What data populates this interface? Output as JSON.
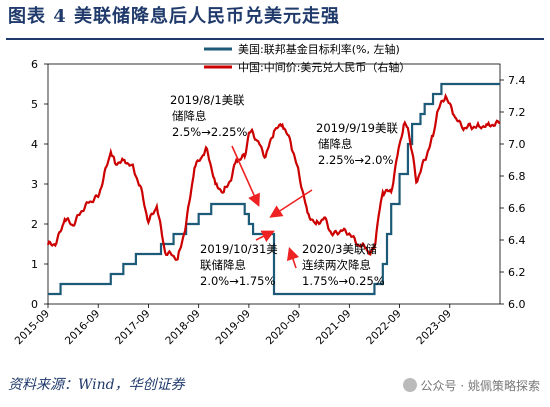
{
  "header": {
    "title": "图表 4   美联储降息后人民币兑美元走强"
  },
  "footer": {
    "source": "资料来源：Wind，华创证券",
    "watermark": "公众号 · 姚佩策略探索"
  },
  "chart_data": {
    "type": "line",
    "title": "",
    "legend": {
      "placement": "top-right",
      "entries": [
        "美国:联邦基金目标利率(%, 左轴)",
        "中国:中间价:美元兑人民币（右轴）"
      ]
    },
    "x_tick_labels": [
      "2015-09",
      "2016-09",
      "2017-09",
      "2018-09",
      "2019-09",
      "2020-09",
      "2021-09",
      "2022-09",
      "2023-09"
    ],
    "x_range": [
      "2015-09",
      "2024-09"
    ],
    "y_left": {
      "range": [
        0,
        6
      ],
      "ticks": [
        "0",
        "1",
        "2",
        "3",
        "4",
        "5",
        "6"
      ]
    },
    "y_right": {
      "range": [
        6.0,
        7.5
      ],
      "ticks": [
        "6.0",
        "6.2",
        "6.4",
        "6.6",
        "6.8",
        "7.0",
        "7.2",
        "7.4"
      ]
    },
    "colors": {
      "fed": "#1d5a78",
      "cny": "#cc0000",
      "annotation": "#ee2222"
    },
    "series": [
      {
        "name": "美国:联邦基金目标利率(%, 左轴)",
        "axis": "left",
        "step": true,
        "x": [
          "2015-09",
          "2015-12",
          "2016-12",
          "2017-03",
          "2017-06",
          "2017-12",
          "2018-03",
          "2018-06",
          "2018-09",
          "2018-12",
          "2019-08",
          "2019-09",
          "2019-10",
          "2020-03",
          "2022-03",
          "2022-05",
          "2022-06",
          "2022-07",
          "2022-09",
          "2022-11",
          "2022-12",
          "2023-02",
          "2023-03",
          "2023-05",
          "2023-07",
          "2024-09"
        ],
        "values": [
          0.25,
          0.5,
          0.75,
          1.0,
          1.25,
          1.5,
          1.75,
          2.0,
          2.25,
          2.5,
          2.25,
          2.0,
          1.75,
          0.25,
          0.5,
          1.0,
          1.75,
          2.5,
          3.25,
          4.0,
          4.5,
          4.75,
          5.0,
          5.25,
          5.5,
          5.5
        ]
      },
      {
        "name": "中国:中间价:美元兑人民币（右轴）",
        "axis": "right",
        "x": [
          "2015-09",
          "2015-11",
          "2016-01",
          "2016-03",
          "2016-05",
          "2016-07",
          "2016-09",
          "2016-11",
          "2016-12",
          "2017-01",
          "2017-03",
          "2017-05",
          "2017-07",
          "2017-09",
          "2017-11",
          "2018-01",
          "2018-03",
          "2018-04",
          "2018-06",
          "2018-08",
          "2018-10",
          "2018-11",
          "2019-01",
          "2019-03",
          "2019-05",
          "2019-06",
          "2019-08",
          "2019-09",
          "2019-10",
          "2019-11",
          "2020-01",
          "2020-03",
          "2020-05",
          "2020-07",
          "2020-09",
          "2020-11",
          "2021-01",
          "2021-03",
          "2021-05",
          "2021-07",
          "2021-09",
          "2021-11",
          "2022-01",
          "2022-02",
          "2022-03",
          "2022-04",
          "2022-05",
          "2022-07",
          "2022-09",
          "2022-10",
          "2022-11",
          "2022-12",
          "2023-01",
          "2023-03",
          "2023-05",
          "2023-06",
          "2023-08",
          "2023-10",
          "2023-12",
          "2024-02",
          "2024-04",
          "2024-06",
          "2024-09"
        ],
        "values": [
          6.37,
          6.38,
          6.53,
          6.49,
          6.58,
          6.64,
          6.67,
          6.86,
          6.95,
          6.88,
          6.9,
          6.87,
          6.74,
          6.51,
          6.61,
          6.32,
          6.3,
          6.28,
          6.5,
          6.85,
          6.93,
          6.97,
          6.75,
          6.7,
          6.8,
          6.9,
          6.92,
          7.07,
          7.07,
          7.02,
          6.92,
          7.08,
          7.12,
          7.01,
          6.81,
          6.57,
          6.5,
          6.54,
          6.43,
          6.46,
          6.44,
          6.37,
          6.35,
          6.31,
          6.35,
          6.55,
          6.7,
          6.7,
          7.0,
          7.12,
          7.1,
          6.95,
          6.76,
          6.9,
          7.05,
          7.2,
          7.3,
          7.18,
          7.1,
          7.11,
          7.11,
          7.12,
          7.13
        ]
      }
    ],
    "annotations": [
      {
        "lines": [
          "2019/8/1美联",
          "储降息",
          "2.5%→2.25%"
        ]
      },
      {
        "lines": [
          "2019/9/19美联",
          "储降息",
          "2.25%→2.0%"
        ]
      },
      {
        "lines": [
          "2019/10/31美",
          "联储降息",
          "2.0%→1.75%"
        ]
      },
      {
        "lines": [
          "2020/3美联储",
          "连续两次降息",
          "1.75%→0.25%"
        ]
      }
    ]
  }
}
